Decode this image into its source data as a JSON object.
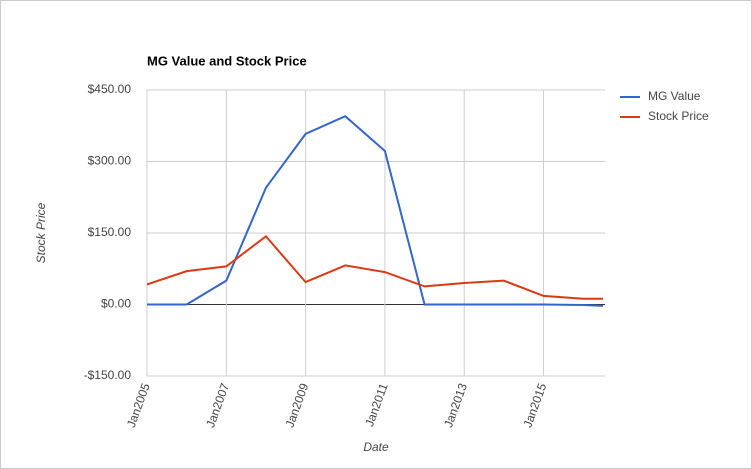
{
  "chart_data": {
    "type": "line",
    "title": "MG Value and Stock Price",
    "x_label": "Date",
    "y_label": "Stock Price",
    "x": [
      2005,
      2006,
      2007,
      2008,
      2009,
      2010,
      2011,
      2012,
      2013,
      2014,
      2015,
      2016,
      2016.5
    ],
    "series": [
      {
        "name": "MG Value",
        "color": "#3366cc",
        "values": [
          0,
          0,
          50,
          245,
          358,
          395,
          322,
          0,
          0,
          0,
          0,
          -1,
          -3
        ]
      },
      {
        "name": "Stock Price",
        "color": "#dc3912",
        "values": [
          42,
          70,
          80,
          143,
          47,
          82,
          68,
          38,
          45,
          50,
          18,
          12,
          12
        ]
      }
    ],
    "xlim": [
      2005,
      2016.55
    ],
    "xticks": [
      {
        "value": 2005,
        "label": "Jan2005"
      },
      {
        "value": 2007,
        "label": "Jan2007"
      },
      {
        "value": 2009,
        "label": "Jan2009"
      },
      {
        "value": 2011,
        "label": "Jan2011"
      },
      {
        "value": 2013,
        "label": "Jan2013"
      },
      {
        "value": 2015,
        "label": "Jan2015"
      }
    ],
    "ylim": [
      -150,
      450
    ],
    "yticks": [
      {
        "value": -150,
        "label": "-$150.00"
      },
      {
        "value": 0,
        "label": "$0.00"
      },
      {
        "value": 150,
        "label": "$150.00"
      },
      {
        "value": 300,
        "label": "$300.00"
      },
      {
        "value": 450,
        "label": "$450.00"
      }
    ],
    "grid": true,
    "legend": "right"
  }
}
